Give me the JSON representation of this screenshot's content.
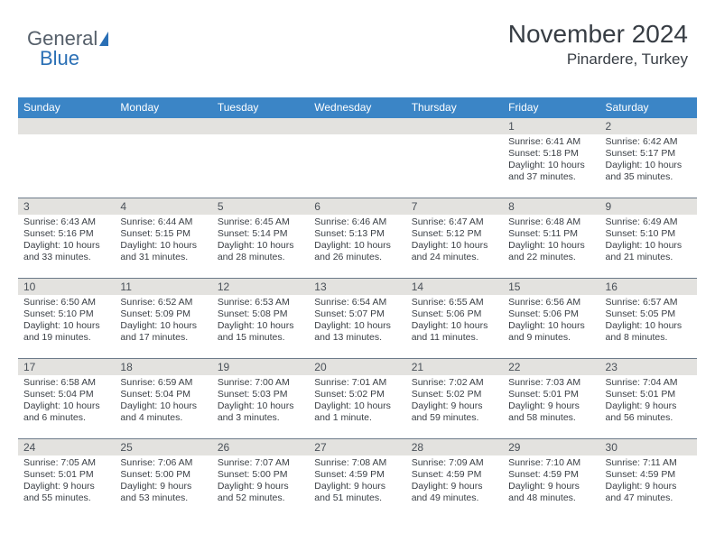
{
  "logo": {
    "text1": "General",
    "text2": "Blue"
  },
  "header": {
    "title": "November 2024",
    "location": "Pinardere, Turkey"
  },
  "weekdays": [
    "Sunday",
    "Monday",
    "Tuesday",
    "Wednesday",
    "Thursday",
    "Friday",
    "Saturday"
  ],
  "colors": {
    "header_bar": "#3b85c6",
    "daynum_bg": "#e3e2df",
    "week_border": "#6c7a89",
    "text": "#3a3f45",
    "logo_blue": "#2a6fb5"
  },
  "weeks": [
    [
      {
        "n": "",
        "sunrise": "",
        "sunset": "",
        "daylight": ""
      },
      {
        "n": "",
        "sunrise": "",
        "sunset": "",
        "daylight": ""
      },
      {
        "n": "",
        "sunrise": "",
        "sunset": "",
        "daylight": ""
      },
      {
        "n": "",
        "sunrise": "",
        "sunset": "",
        "daylight": ""
      },
      {
        "n": "",
        "sunrise": "",
        "sunset": "",
        "daylight": ""
      },
      {
        "n": "1",
        "sunrise": "Sunrise: 6:41 AM",
        "sunset": "Sunset: 5:18 PM",
        "daylight": "Daylight: 10 hours and 37 minutes."
      },
      {
        "n": "2",
        "sunrise": "Sunrise: 6:42 AM",
        "sunset": "Sunset: 5:17 PM",
        "daylight": "Daylight: 10 hours and 35 minutes."
      }
    ],
    [
      {
        "n": "3",
        "sunrise": "Sunrise: 6:43 AM",
        "sunset": "Sunset: 5:16 PM",
        "daylight": "Daylight: 10 hours and 33 minutes."
      },
      {
        "n": "4",
        "sunrise": "Sunrise: 6:44 AM",
        "sunset": "Sunset: 5:15 PM",
        "daylight": "Daylight: 10 hours and 31 minutes."
      },
      {
        "n": "5",
        "sunrise": "Sunrise: 6:45 AM",
        "sunset": "Sunset: 5:14 PM",
        "daylight": "Daylight: 10 hours and 28 minutes."
      },
      {
        "n": "6",
        "sunrise": "Sunrise: 6:46 AM",
        "sunset": "Sunset: 5:13 PM",
        "daylight": "Daylight: 10 hours and 26 minutes."
      },
      {
        "n": "7",
        "sunrise": "Sunrise: 6:47 AM",
        "sunset": "Sunset: 5:12 PM",
        "daylight": "Daylight: 10 hours and 24 minutes."
      },
      {
        "n": "8",
        "sunrise": "Sunrise: 6:48 AM",
        "sunset": "Sunset: 5:11 PM",
        "daylight": "Daylight: 10 hours and 22 minutes."
      },
      {
        "n": "9",
        "sunrise": "Sunrise: 6:49 AM",
        "sunset": "Sunset: 5:10 PM",
        "daylight": "Daylight: 10 hours and 21 minutes."
      }
    ],
    [
      {
        "n": "10",
        "sunrise": "Sunrise: 6:50 AM",
        "sunset": "Sunset: 5:10 PM",
        "daylight": "Daylight: 10 hours and 19 minutes."
      },
      {
        "n": "11",
        "sunrise": "Sunrise: 6:52 AM",
        "sunset": "Sunset: 5:09 PM",
        "daylight": "Daylight: 10 hours and 17 minutes."
      },
      {
        "n": "12",
        "sunrise": "Sunrise: 6:53 AM",
        "sunset": "Sunset: 5:08 PM",
        "daylight": "Daylight: 10 hours and 15 minutes."
      },
      {
        "n": "13",
        "sunrise": "Sunrise: 6:54 AM",
        "sunset": "Sunset: 5:07 PM",
        "daylight": "Daylight: 10 hours and 13 minutes."
      },
      {
        "n": "14",
        "sunrise": "Sunrise: 6:55 AM",
        "sunset": "Sunset: 5:06 PM",
        "daylight": "Daylight: 10 hours and 11 minutes."
      },
      {
        "n": "15",
        "sunrise": "Sunrise: 6:56 AM",
        "sunset": "Sunset: 5:06 PM",
        "daylight": "Daylight: 10 hours and 9 minutes."
      },
      {
        "n": "16",
        "sunrise": "Sunrise: 6:57 AM",
        "sunset": "Sunset: 5:05 PM",
        "daylight": "Daylight: 10 hours and 8 minutes."
      }
    ],
    [
      {
        "n": "17",
        "sunrise": "Sunrise: 6:58 AM",
        "sunset": "Sunset: 5:04 PM",
        "daylight": "Daylight: 10 hours and 6 minutes."
      },
      {
        "n": "18",
        "sunrise": "Sunrise: 6:59 AM",
        "sunset": "Sunset: 5:04 PM",
        "daylight": "Daylight: 10 hours and 4 minutes."
      },
      {
        "n": "19",
        "sunrise": "Sunrise: 7:00 AM",
        "sunset": "Sunset: 5:03 PM",
        "daylight": "Daylight: 10 hours and 3 minutes."
      },
      {
        "n": "20",
        "sunrise": "Sunrise: 7:01 AM",
        "sunset": "Sunset: 5:02 PM",
        "daylight": "Daylight: 10 hours and 1 minute."
      },
      {
        "n": "21",
        "sunrise": "Sunrise: 7:02 AM",
        "sunset": "Sunset: 5:02 PM",
        "daylight": "Daylight: 9 hours and 59 minutes."
      },
      {
        "n": "22",
        "sunrise": "Sunrise: 7:03 AM",
        "sunset": "Sunset: 5:01 PM",
        "daylight": "Daylight: 9 hours and 58 minutes."
      },
      {
        "n": "23",
        "sunrise": "Sunrise: 7:04 AM",
        "sunset": "Sunset: 5:01 PM",
        "daylight": "Daylight: 9 hours and 56 minutes."
      }
    ],
    [
      {
        "n": "24",
        "sunrise": "Sunrise: 7:05 AM",
        "sunset": "Sunset: 5:01 PM",
        "daylight": "Daylight: 9 hours and 55 minutes."
      },
      {
        "n": "25",
        "sunrise": "Sunrise: 7:06 AM",
        "sunset": "Sunset: 5:00 PM",
        "daylight": "Daylight: 9 hours and 53 minutes."
      },
      {
        "n": "26",
        "sunrise": "Sunrise: 7:07 AM",
        "sunset": "Sunset: 5:00 PM",
        "daylight": "Daylight: 9 hours and 52 minutes."
      },
      {
        "n": "27",
        "sunrise": "Sunrise: 7:08 AM",
        "sunset": "Sunset: 4:59 PM",
        "daylight": "Daylight: 9 hours and 51 minutes."
      },
      {
        "n": "28",
        "sunrise": "Sunrise: 7:09 AM",
        "sunset": "Sunset: 4:59 PM",
        "daylight": "Daylight: 9 hours and 49 minutes."
      },
      {
        "n": "29",
        "sunrise": "Sunrise: 7:10 AM",
        "sunset": "Sunset: 4:59 PM",
        "daylight": "Daylight: 9 hours and 48 minutes."
      },
      {
        "n": "30",
        "sunrise": "Sunrise: 7:11 AM",
        "sunset": "Sunset: 4:59 PM",
        "daylight": "Daylight: 9 hours and 47 minutes."
      }
    ]
  ]
}
